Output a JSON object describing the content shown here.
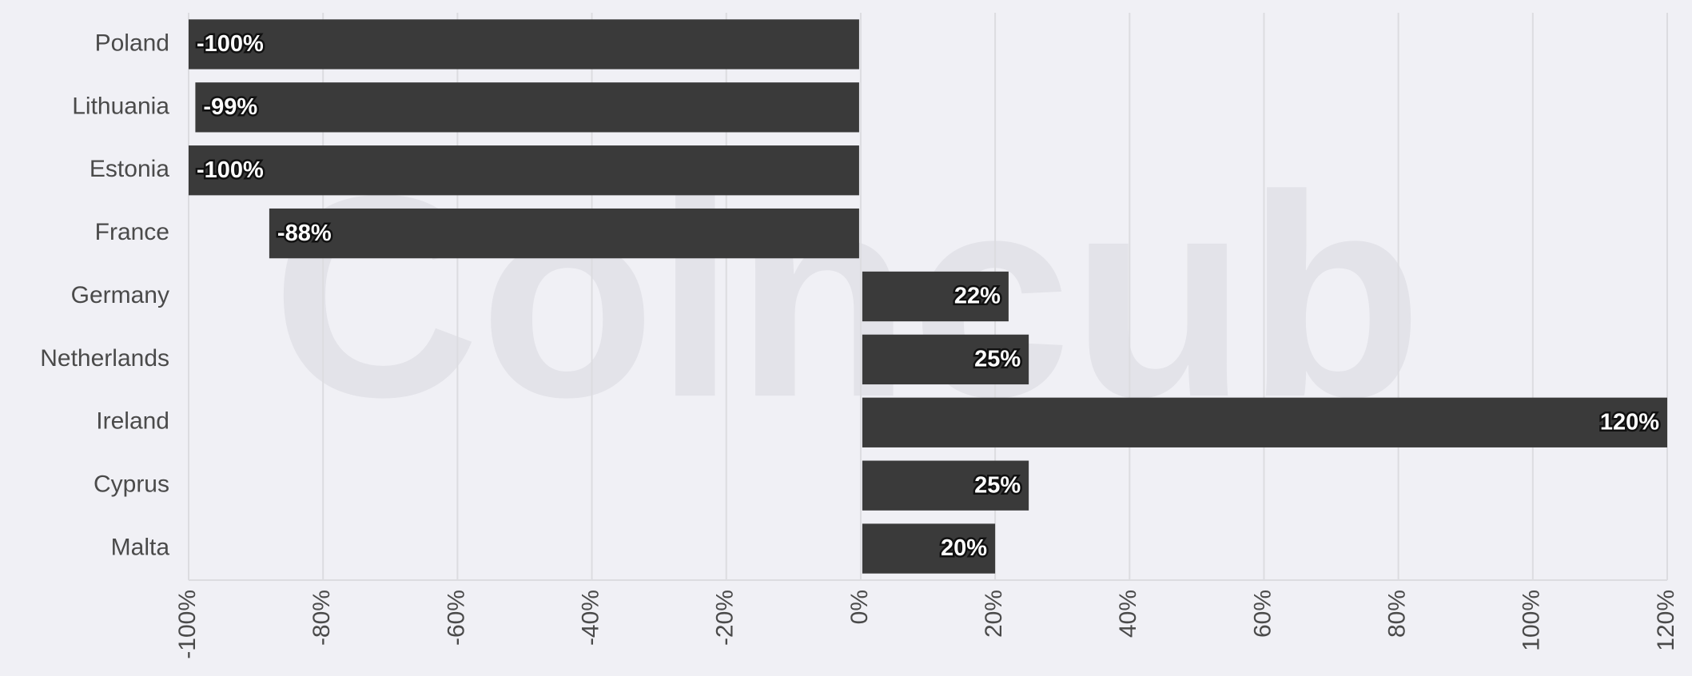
{
  "chart_data": {
    "type": "bar",
    "orientation": "horizontal",
    "watermark": "Coincub",
    "categories": [
      "Poland",
      "Lithuania",
      "Estonia",
      "France",
      "Germany",
      "Netherlands",
      "Ireland",
      "Cyprus",
      "Malta"
    ],
    "values": [
      -100,
      -99,
      -100,
      -88,
      22,
      25,
      120,
      25,
      20
    ],
    "value_labels": [
      "-100%",
      "-99%",
      "-100%",
      "-88%",
      "22%",
      "25%",
      "120%",
      "25%",
      "20%"
    ],
    "color": "#3a3a3a",
    "xlim": [
      -100,
      120
    ],
    "xticks": [
      {
        "value": -100,
        "label": "-100%"
      },
      {
        "value": -80,
        "label": "-80%"
      },
      {
        "value": -60,
        "label": "-60%"
      },
      {
        "value": -40,
        "label": "-40%"
      },
      {
        "value": -20,
        "label": "-20%"
      },
      {
        "value": 0,
        "label": "0%"
      },
      {
        "value": 20,
        "label": "20%"
      },
      {
        "value": 40,
        "label": "40%"
      },
      {
        "value": 60,
        "label": "60%"
      },
      {
        "value": 80,
        "label": "80%"
      },
      {
        "value": 100,
        "label": "100%"
      },
      {
        "value": 120,
        "label": "120%"
      }
    ],
    "grid": true
  }
}
